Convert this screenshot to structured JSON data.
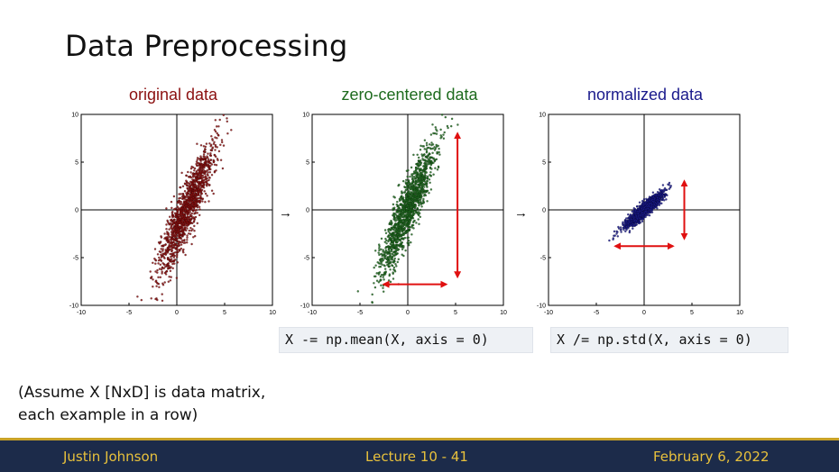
{
  "slide": {
    "title": "Data Preprocessing",
    "note_lines": [
      "(Assume X [NxD] is data matrix,",
      "each example in a row)"
    ],
    "footer": {
      "author": "Justin Johnson",
      "lecture": "Lecture 10 - 41",
      "date": "February 6, 2022"
    },
    "arrow_glyph": "→"
  },
  "code": {
    "mean": "X -= np.mean(X, axis = 0)",
    "std": "X /= np.std(X, axis = 0)"
  },
  "colors": {
    "original": "#8b1010",
    "zero_centered": "#1e6b1e",
    "normalized": "#1a1a8c",
    "range_arrow": "#e01010"
  },
  "chart_data": [
    {
      "type": "scatter",
      "title": "original data",
      "xlim": [
        -10,
        10
      ],
      "ylim": [
        -10,
        10
      ],
      "xticks": [
        -10,
        -5,
        0,
        5,
        10
      ],
      "yticks": [
        -10,
        -5,
        0,
        5,
        10
      ],
      "distribution": {
        "center": [
          1,
          0
        ],
        "major_axis_slope": 2.5,
        "major_extent": 8.5,
        "minor_extent": 1.2
      },
      "point_color": "#8b1010",
      "grid": false
    },
    {
      "type": "scatter",
      "title": "zero-centered data",
      "xlim": [
        -10,
        10
      ],
      "ylim": [
        -10,
        10
      ],
      "xticks": [
        -10,
        -5,
        0,
        5,
        10
      ],
      "yticks": [
        -10,
        -5,
        0,
        5,
        10
      ],
      "distribution": {
        "center": [
          0,
          0
        ],
        "major_axis_slope": 2.5,
        "major_extent": 8.5,
        "minor_extent": 1.2
      },
      "point_color": "#1e6b1e",
      "range_arrows": {
        "x": [
          -2.5,
          4
        ],
        "y": [
          -7,
          8
        ]
      },
      "grid": false
    },
    {
      "type": "scatter",
      "title": "normalized data",
      "xlim": [
        -10,
        10
      ],
      "ylim": [
        -10,
        10
      ],
      "xticks": [
        -10,
        -5,
        0,
        5,
        10
      ],
      "yticks": [
        -10,
        -5,
        0,
        5,
        10
      ],
      "distribution": {
        "center": [
          0,
          0
        ],
        "major_axis_slope": 0.9,
        "major_extent": 3,
        "minor_extent": 0.55
      },
      "point_color": "#1a1a8c",
      "range_arrows": {
        "x": [
          -3,
          3
        ],
        "y": [
          -3,
          3
        ]
      },
      "grid": false
    }
  ]
}
